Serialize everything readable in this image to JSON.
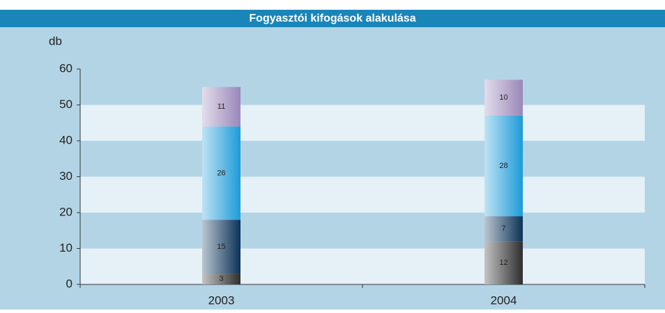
{
  "chart_data": {
    "type": "stacked_bar",
    "title": "Fogyasztói kifogások alakulása",
    "y_label": "db",
    "categories": [
      "2003",
      "2004"
    ],
    "series": [
      {
        "color": "#2e2e2e",
        "values": [
          3,
          12
        ]
      },
      {
        "color": "#0b3257",
        "values": [
          15,
          7
        ]
      },
      {
        "color": "#1c9bd8",
        "values": [
          26,
          28
        ]
      },
      {
        "color": "#9a87b9",
        "values": [
          11,
          10
        ]
      }
    ],
    "ylim": [
      0,
      60
    ],
    "yticks": [
      0,
      10,
      20,
      30,
      40,
      50,
      60
    ],
    "grid": true
  }
}
